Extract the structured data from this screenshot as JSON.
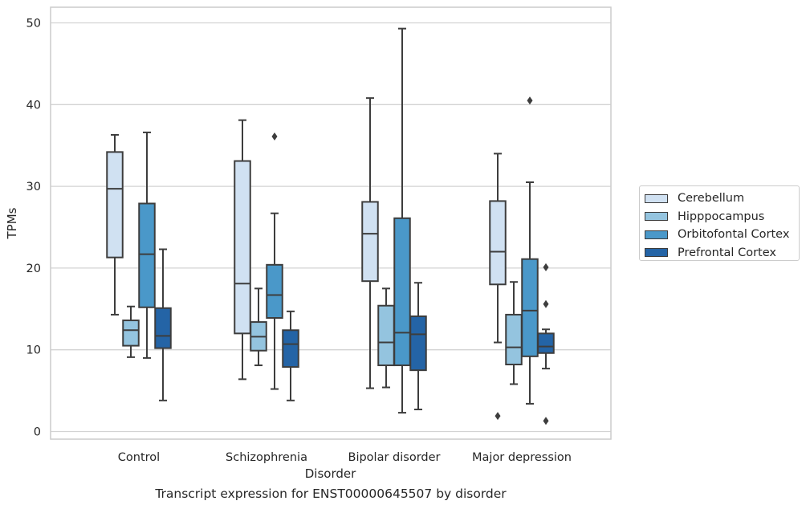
{
  "caption": "Transcript expression for ENST00000645507 by disorder",
  "chart_data": {
    "type": "box",
    "xlabel": "Disorder",
    "ylabel": "TPMs",
    "ylim": [
      -1,
      52
    ],
    "yticks": [
      0,
      10,
      20,
      30,
      40,
      50
    ],
    "grid": "horizontal",
    "legend_position": "right",
    "categories": [
      "Control",
      "Schizophrenia",
      "Bipolar disorder",
      "Major depression"
    ],
    "series": [
      {
        "name": "Cerebellum",
        "color": "#d0e1f2",
        "boxes": [
          {
            "whisker_low": 14.3,
            "q1": 21.3,
            "median": 29.7,
            "q3": 34.2,
            "whisker_high": 36.3,
            "outliers": []
          },
          {
            "whisker_low": 6.4,
            "q1": 12.0,
            "median": 18.1,
            "q3": 33.1,
            "whisker_high": 38.1,
            "outliers": []
          },
          {
            "whisker_low": 5.3,
            "q1": 18.4,
            "median": 24.2,
            "q3": 28.1,
            "whisker_high": 40.8,
            "outliers": []
          },
          {
            "whisker_low": 10.9,
            "q1": 18.0,
            "median": 22.0,
            "q3": 28.2,
            "whisker_high": 34.0,
            "outliers": [
              1.9
            ]
          }
        ]
      },
      {
        "name": "Hipppocampus",
        "color": "#94c4df",
        "boxes": [
          {
            "whisker_low": 9.1,
            "q1": 10.5,
            "median": 12.4,
            "q3": 13.6,
            "whisker_high": 15.3,
            "outliers": []
          },
          {
            "whisker_low": 8.1,
            "q1": 9.9,
            "median": 11.6,
            "q3": 13.4,
            "whisker_high": 17.5,
            "outliers": []
          },
          {
            "whisker_low": 5.4,
            "q1": 8.1,
            "median": 10.9,
            "q3": 15.4,
            "whisker_high": 17.5,
            "outliers": []
          },
          {
            "whisker_low": 5.8,
            "q1": 8.2,
            "median": 10.3,
            "q3": 14.3,
            "whisker_high": 18.3,
            "outliers": []
          }
        ]
      },
      {
        "name": "Orbitofontal Cortex",
        "color": "#4a98c9",
        "boxes": [
          {
            "whisker_low": 9.0,
            "q1": 15.2,
            "median": 21.7,
            "q3": 27.9,
            "whisker_high": 36.6,
            "outliers": []
          },
          {
            "whisker_low": 5.2,
            "q1": 13.9,
            "median": 16.7,
            "q3": 20.4,
            "whisker_high": 26.7,
            "outliers": [
              36.1
            ]
          },
          {
            "whisker_low": 2.3,
            "q1": 8.1,
            "median": 12.1,
            "q3": 26.1,
            "whisker_high": 49.3,
            "outliers": []
          },
          {
            "whisker_low": 3.4,
            "q1": 9.2,
            "median": 14.8,
            "q3": 21.1,
            "whisker_high": 30.5,
            "outliers": [
              40.5
            ]
          }
        ]
      },
      {
        "name": "Prefrontal Cortex",
        "color": "#2464a6",
        "boxes": [
          {
            "whisker_low": 3.8,
            "q1": 10.2,
            "median": 11.7,
            "q3": 15.1,
            "whisker_high": 22.3,
            "outliers": []
          },
          {
            "whisker_low": 3.8,
            "q1": 7.9,
            "median": 10.7,
            "q3": 12.4,
            "whisker_high": 14.7,
            "outliers": []
          },
          {
            "whisker_low": 2.7,
            "q1": 7.5,
            "median": 11.9,
            "q3": 14.1,
            "whisker_high": 18.2,
            "outliers": []
          },
          {
            "whisker_low": 7.7,
            "q1": 9.6,
            "median": 10.4,
            "q3": 12.0,
            "whisker_high": 12.5,
            "outliers": [
              20.1,
              15.6,
              1.3
            ]
          }
        ]
      }
    ]
  }
}
